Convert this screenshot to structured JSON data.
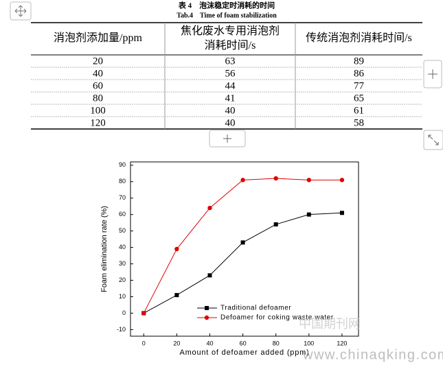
{
  "caption": {
    "cn": "表 4　泡沫稳定时消耗的时间",
    "en": "Tab.4　Time of foam stabilization"
  },
  "table": {
    "headers": [
      "消泡剂添加量/ppm",
      "焦化废水专用消泡剂消耗时间/s",
      "传统消泡剂消耗时间/s"
    ],
    "rows": [
      [
        20,
        63,
        89
      ],
      [
        40,
        56,
        86
      ],
      [
        60,
        44,
        77
      ],
      [
        80,
        41,
        65
      ],
      [
        100,
        40,
        61
      ],
      [
        120,
        40,
        58
      ]
    ]
  },
  "chart_data": {
    "type": "line",
    "xlabel": "Amount of defoamer added (ppm)",
    "ylabel": "Foam elimination rate (%)",
    "x": [
      0,
      20,
      40,
      60,
      80,
      100,
      120
    ],
    "series": [
      {
        "name": "Traditional defoamer",
        "color": "#000000",
        "marker": "square",
        "values": [
          0,
          11,
          23,
          43,
          54,
          60,
          61
        ]
      },
      {
        "name": "Defoamer for coking waste water",
        "color": "#e00000",
        "marker": "circle",
        "values": [
          0,
          39,
          64,
          81,
          82,
          81,
          81
        ]
      }
    ],
    "xlim": [
      -8,
      130
    ],
    "xticks": [
      0,
      20,
      40,
      60,
      80,
      100,
      120
    ],
    "ylim": [
      -14,
      92
    ],
    "yticks": [
      -10,
      0,
      10,
      20,
      30,
      40,
      50,
      60,
      70,
      80,
      90
    ]
  },
  "watermark": {
    "cn": "中国期刊网",
    "url": "www.chinaqking.com"
  }
}
